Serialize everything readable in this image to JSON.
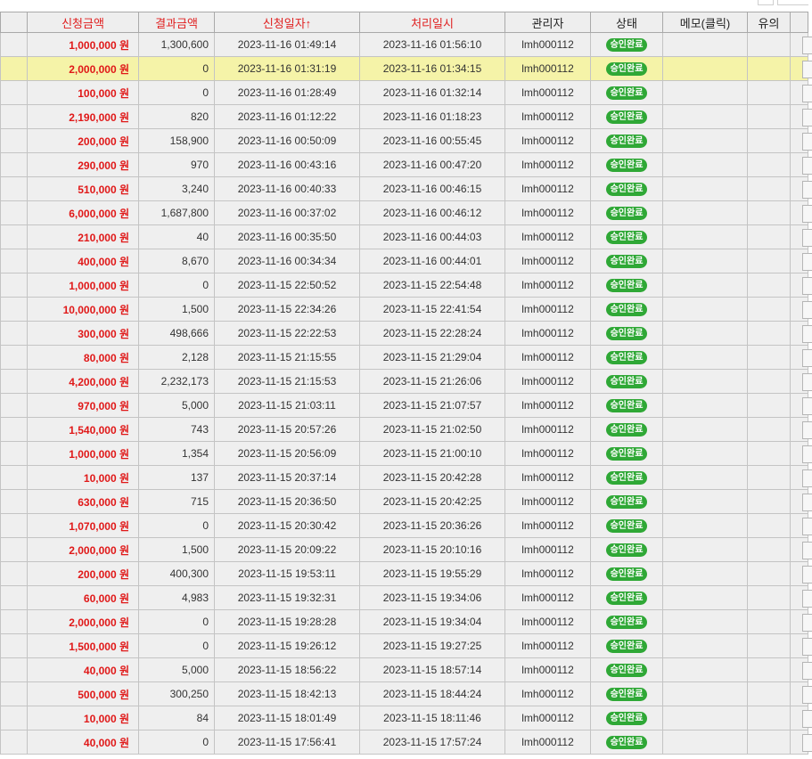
{
  "headers": {
    "req_amount": "신청금액",
    "result_amount": "결과금액",
    "req_date": "신청일자↑",
    "proc_date": "처리일시",
    "admin": "관리자",
    "status": "상태",
    "memo": "메모(클릭)",
    "note": "유의"
  },
  "colors": {
    "header_red": "#e02020",
    "highlight_row": "#f5f3a8",
    "badge_green": "#2fa836"
  },
  "icons": {
    "status_badge": "green-pill"
  },
  "rows": [
    {
      "req": "1,000,000 원",
      "res": "1,300,600",
      "req_date": "2023-11-16 01:49:14",
      "proc_date": "2023-11-16 01:56:10",
      "admin": "lmh000112",
      "status": "승인완료"
    },
    {
      "req": "2,000,000 원",
      "res": "0",
      "req_date": "2023-11-16 01:31:19",
      "proc_date": "2023-11-16 01:34:15",
      "admin": "lmh000112",
      "status": "승인완료",
      "highlight": true
    },
    {
      "req": "100,000 원",
      "res": "0",
      "req_date": "2023-11-16 01:28:49",
      "proc_date": "2023-11-16 01:32:14",
      "admin": "lmh000112",
      "status": "승인완료"
    },
    {
      "req": "2,190,000 원",
      "res": "820",
      "req_date": "2023-11-16 01:12:22",
      "proc_date": "2023-11-16 01:18:23",
      "admin": "lmh000112",
      "status": "승인완료"
    },
    {
      "req": "200,000 원",
      "res": "158,900",
      "req_date": "2023-11-16 00:50:09",
      "proc_date": "2023-11-16 00:55:45",
      "admin": "lmh000112",
      "status": "승인완료"
    },
    {
      "req": "290,000 원",
      "res": "970",
      "req_date": "2023-11-16 00:43:16",
      "proc_date": "2023-11-16 00:47:20",
      "admin": "lmh000112",
      "status": "승인완료"
    },
    {
      "req": "510,000 원",
      "res": "3,240",
      "req_date": "2023-11-16 00:40:33",
      "proc_date": "2023-11-16 00:46:15",
      "admin": "lmh000112",
      "status": "승인완료"
    },
    {
      "req": "6,000,000 원",
      "res": "1,687,800",
      "req_date": "2023-11-16 00:37:02",
      "proc_date": "2023-11-16 00:46:12",
      "admin": "lmh000112",
      "status": "승인완료"
    },
    {
      "req": "210,000 원",
      "res": "40",
      "req_date": "2023-11-16 00:35:50",
      "proc_date": "2023-11-16 00:44:03",
      "admin": "lmh000112",
      "status": "승인완료"
    },
    {
      "req": "400,000 원",
      "res": "8,670",
      "req_date": "2023-11-16 00:34:34",
      "proc_date": "2023-11-16 00:44:01",
      "admin": "lmh000112",
      "status": "승인완료"
    },
    {
      "req": "1,000,000 원",
      "res": "0",
      "req_date": "2023-11-15 22:50:52",
      "proc_date": "2023-11-15 22:54:48",
      "admin": "lmh000112",
      "status": "승인완료"
    },
    {
      "req": "10,000,000 원",
      "res": "1,500",
      "req_date": "2023-11-15 22:34:26",
      "proc_date": "2023-11-15 22:41:54",
      "admin": "lmh000112",
      "status": "승인완료"
    },
    {
      "req": "300,000 원",
      "res": "498,666",
      "req_date": "2023-11-15 22:22:53",
      "proc_date": "2023-11-15 22:28:24",
      "admin": "lmh000112",
      "status": "승인완료"
    },
    {
      "req": "80,000 원",
      "res": "2,128",
      "req_date": "2023-11-15 21:15:55",
      "proc_date": "2023-11-15 21:29:04",
      "admin": "lmh000112",
      "status": "승인완료"
    },
    {
      "req": "4,200,000 원",
      "res": "2,232,173",
      "req_date": "2023-11-15 21:15:53",
      "proc_date": "2023-11-15 21:26:06",
      "admin": "lmh000112",
      "status": "승인완료"
    },
    {
      "req": "970,000 원",
      "res": "5,000",
      "req_date": "2023-11-15 21:03:11",
      "proc_date": "2023-11-15 21:07:57",
      "admin": "lmh000112",
      "status": "승인완료"
    },
    {
      "req": "1,540,000 원",
      "res": "743",
      "req_date": "2023-11-15 20:57:26",
      "proc_date": "2023-11-15 21:02:50",
      "admin": "lmh000112",
      "status": "승인완료"
    },
    {
      "req": "1,000,000 원",
      "res": "1,354",
      "req_date": "2023-11-15 20:56:09",
      "proc_date": "2023-11-15 21:00:10",
      "admin": "lmh000112",
      "status": "승인완료"
    },
    {
      "req": "10,000 원",
      "res": "137",
      "req_date": "2023-11-15 20:37:14",
      "proc_date": "2023-11-15 20:42:28",
      "admin": "lmh000112",
      "status": "승인완료"
    },
    {
      "req": "630,000 원",
      "res": "715",
      "req_date": "2023-11-15 20:36:50",
      "proc_date": "2023-11-15 20:42:25",
      "admin": "lmh000112",
      "status": "승인완료"
    },
    {
      "req": "1,070,000 원",
      "res": "0",
      "req_date": "2023-11-15 20:30:42",
      "proc_date": "2023-11-15 20:36:26",
      "admin": "lmh000112",
      "status": "승인완료"
    },
    {
      "req": "2,000,000 원",
      "res": "1,500",
      "req_date": "2023-11-15 20:09:22",
      "proc_date": "2023-11-15 20:10:16",
      "admin": "lmh000112",
      "status": "승인완료"
    },
    {
      "req": "200,000 원",
      "res": "400,300",
      "req_date": "2023-11-15 19:53:11",
      "proc_date": "2023-11-15 19:55:29",
      "admin": "lmh000112",
      "status": "승인완료"
    },
    {
      "req": "60,000 원",
      "res": "4,983",
      "req_date": "2023-11-15 19:32:31",
      "proc_date": "2023-11-15 19:34:06",
      "admin": "lmh000112",
      "status": "승인완료"
    },
    {
      "req": "2,000,000 원",
      "res": "0",
      "req_date": "2023-11-15 19:28:28",
      "proc_date": "2023-11-15 19:34:04",
      "admin": "lmh000112",
      "status": "승인완료"
    },
    {
      "req": "1,500,000 원",
      "res": "0",
      "req_date": "2023-11-15 19:26:12",
      "proc_date": "2023-11-15 19:27:25",
      "admin": "lmh000112",
      "status": "승인완료"
    },
    {
      "req": "40,000 원",
      "res": "5,000",
      "req_date": "2023-11-15 18:56:22",
      "proc_date": "2023-11-15 18:57:14",
      "admin": "lmh000112",
      "status": "승인완료"
    },
    {
      "req": "500,000 원",
      "res": "300,250",
      "req_date": "2023-11-15 18:42:13",
      "proc_date": "2023-11-15 18:44:24",
      "admin": "lmh000112",
      "status": "승인완료"
    },
    {
      "req": "10,000 원",
      "res": "84",
      "req_date": "2023-11-15 18:01:49",
      "proc_date": "2023-11-15 18:11:46",
      "admin": "lmh000112",
      "status": "승인완료"
    },
    {
      "req": "40,000 원",
      "res": "0",
      "req_date": "2023-11-15 17:56:41",
      "proc_date": "2023-11-15 17:57:24",
      "admin": "lmh000112",
      "status": "승인완료"
    }
  ]
}
